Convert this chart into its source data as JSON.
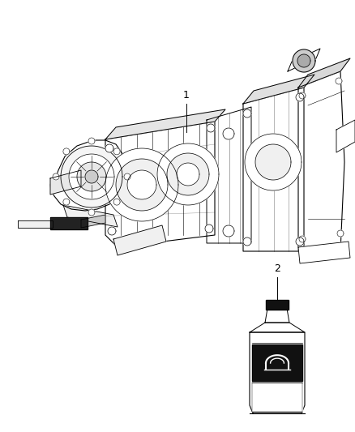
{
  "background_color": "#ffffff",
  "fig_width": 4.38,
  "fig_height": 5.33,
  "dpi": 100,
  "label1_text": "1",
  "label2_text": "2",
  "line_color": "#000000",
  "fill_color": "#ffffff",
  "dark_fill": "#333333",
  "gray_fill": "#aaaaaa",
  "light_gray": "#dddddd"
}
